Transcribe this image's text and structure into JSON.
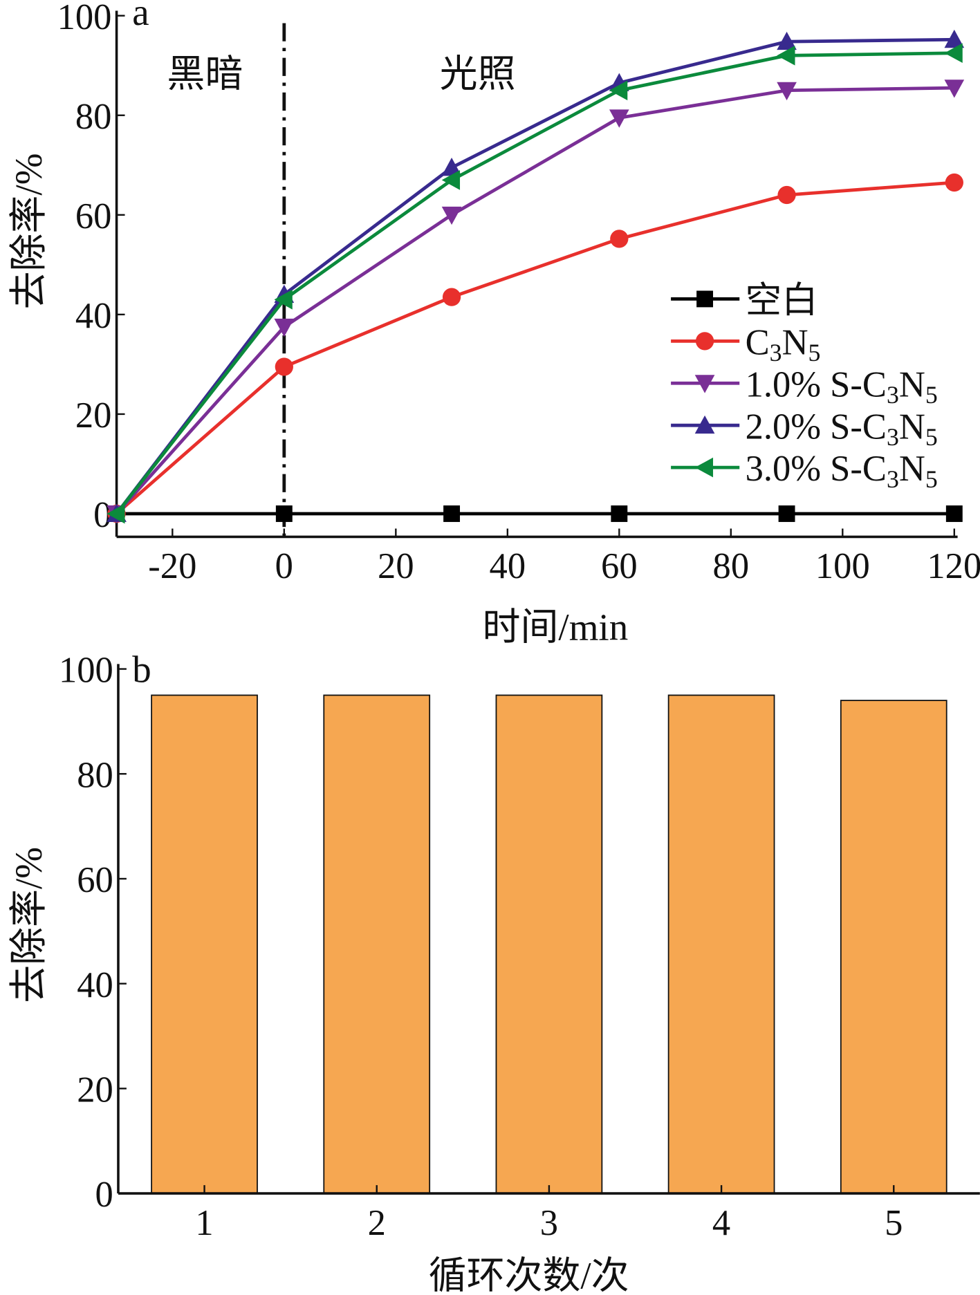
{
  "chart_data": [
    {
      "type": "line",
      "panel_label": "a",
      "xlabel": "时间/min",
      "ylabel": "去除率/%",
      "xlim": [
        -30,
        120
      ],
      "ylim": [
        0,
        100
      ],
      "xticks": [
        -20,
        0,
        20,
        40,
        60,
        80,
        100,
        120
      ],
      "yticks": [
        0,
        20,
        40,
        60,
        80,
        100
      ],
      "x": [
        -30,
        0,
        30,
        60,
        90,
        120
      ],
      "annotations": {
        "dark": "黑暗",
        "light": "光照"
      },
      "divider_x": 0,
      "legend_position": "right",
      "series": [
        {
          "name": "空白",
          "color": "#000000",
          "marker": "square",
          "values": [
            0,
            0,
            0,
            0,
            0,
            0
          ]
        },
        {
          "name": "C3N5",
          "color": "#e8302c",
          "marker": "circle",
          "values": [
            0,
            29.5,
            43.5,
            55.2,
            64,
            66.5
          ]
        },
        {
          "name": "1.0% S-C3N5",
          "color": "#7a2f96",
          "marker": "triangle-down",
          "values": [
            0,
            37.5,
            60,
            79.5,
            85,
            85.5
          ]
        },
        {
          "name": "2.0% S-C3N5",
          "color": "#382a8e",
          "marker": "triangle-up",
          "values": [
            0,
            44,
            69.5,
            86.5,
            94.8,
            95.2
          ]
        },
        {
          "name": "3.0% S-C3N5",
          "color": "#0b8a3c",
          "marker": "triangle-left",
          "values": [
            0,
            43,
            67,
            85,
            92,
            92.5
          ]
        }
      ]
    },
    {
      "type": "bar",
      "panel_label": "b",
      "xlabel": "循环次数/次",
      "ylabel": "去除率/%",
      "ylim": [
        0,
        100
      ],
      "yticks": [
        0,
        20,
        40,
        60,
        80,
        100
      ],
      "categories": [
        "1",
        "2",
        "3",
        "4",
        "5"
      ],
      "values": [
        95,
        95,
        95,
        95,
        94
      ],
      "color": "#f6a751"
    }
  ]
}
